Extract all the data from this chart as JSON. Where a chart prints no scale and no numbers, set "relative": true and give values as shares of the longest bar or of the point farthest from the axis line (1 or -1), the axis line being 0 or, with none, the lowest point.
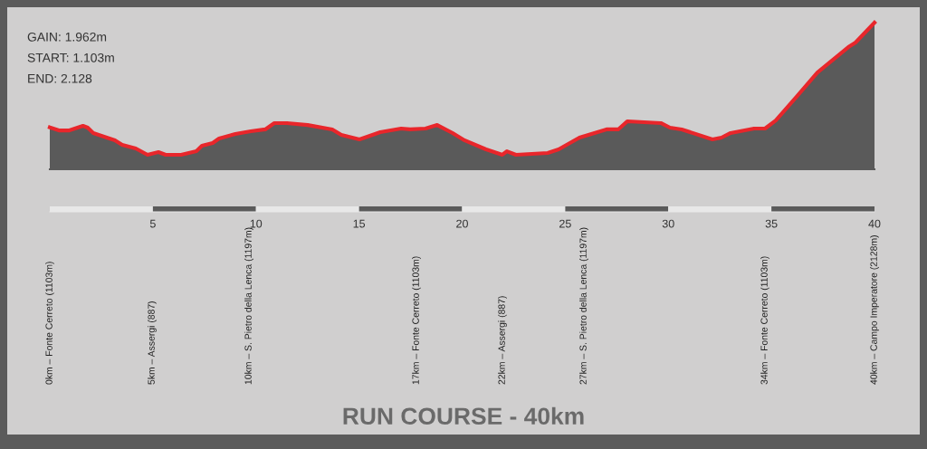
{
  "chart_data": {
    "type": "area",
    "title": "RUN COURSE - 40km",
    "relative": true,
    "x": [
      0,
      0.44,
      0.95,
      1.61,
      1.84,
      2.11,
      3.16,
      3.51,
      4.17,
      4.74,
      5.27,
      5.62,
      6.37,
      7.11,
      7.38,
      7.9,
      8.21,
      9.0,
      9.75,
      10.45,
      10.89,
      11.5,
      12.51,
      13.7,
      14.14,
      15.02,
      16.03,
      17.04,
      17.48,
      18.22,
      18.79,
      19.54,
      20.11,
      21.16,
      21.95,
      22.17,
      22.61,
      24.15,
      24.68,
      25.69,
      27.0,
      27.57,
      28.01,
      29.64,
      30.08,
      30.65,
      32.14,
      32.58,
      33.02,
      34.16,
      34.69,
      35.21,
      36.22,
      37.23,
      38.73,
      39.08,
      40
    ],
    "series": [
      {
        "color": "#5a5a5a",
        "values": [
          0.286,
          0.265,
          0.265,
          0.296,
          0.284,
          0.247,
          0.198,
          0.167,
          0.142,
          0.099,
          0.117,
          0.099,
          0.099,
          0.123,
          0.16,
          0.179,
          0.21,
          0.241,
          0.259,
          0.272,
          0.315,
          0.315,
          0.302,
          0.272,
          0.235,
          0.204,
          0.253,
          0.278,
          0.272,
          0.278,
          0.302,
          0.247,
          0.198,
          0.136,
          0.099,
          0.123,
          0.099,
          0.111,
          0.136,
          0.216,
          0.272,
          0.272,
          0.327,
          0.315,
          0.284,
          0.272,
          0.204,
          0.216,
          0.247,
          0.278,
          0.278,
          0.333,
          0.494,
          0.66,
          0.833,
          0.864,
          1.0
        ]
      }
    ],
    "xlim": [
      0,
      40
    ],
    "xticks": [
      5,
      10,
      15,
      20,
      25,
      30,
      35,
      40
    ],
    "tick_labels": "x",
    "annotations": [
      "GAIN: 1.962m",
      "START: 1.103m",
      "END: 2.128",
      "0km – Fonte Cerreto (1103m)",
      "5km – Assergi (887)",
      "10km – S. Pietro della Lenca (1197m)",
      "17km – Fonte Cerreto (1103m)",
      "22km – Assergi (887)",
      "27km – S. Pietro della Lenca (1197m)",
      "34km – Fonte Cerreto (1103m)",
      "40km – Campo Imperatore (2128m)"
    ]
  }
}
